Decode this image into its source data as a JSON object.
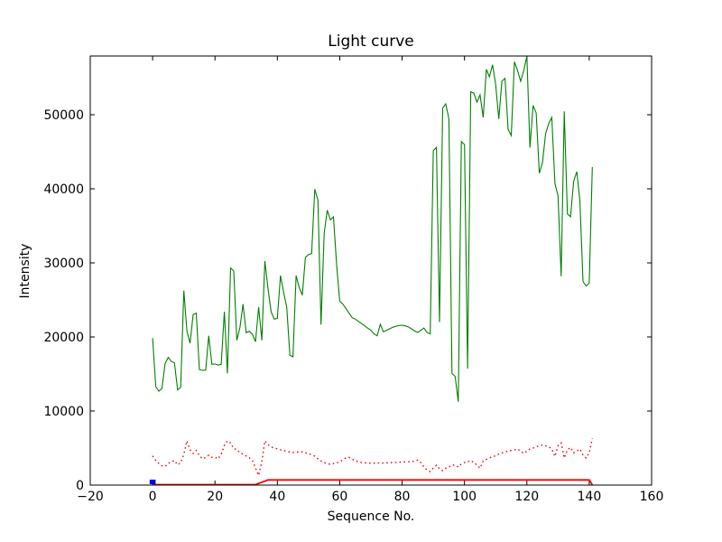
{
  "figure": {
    "title": "Light curve",
    "xlabel": "Sequence No.",
    "ylabel": "Intensity",
    "background": "#ffffff",
    "accent_colors": {
      "main_line": "#008000",
      "secondary_line": "#ff0000",
      "marker": "#0000dd",
      "axis": "#000000"
    }
  },
  "chart_data": {
    "type": "line",
    "title": "Light curve",
    "xlabel": "Sequence No.",
    "ylabel": "Intensity",
    "xlim": [
      -20,
      160
    ],
    "ylim": [
      0,
      57927
    ],
    "grid": false,
    "legend": null,
    "x_ticks": [
      {
        "value": -20,
        "label": "−20"
      },
      {
        "value": 0,
        "label": "0"
      },
      {
        "value": 20,
        "label": "20"
      },
      {
        "value": 40,
        "label": "40"
      },
      {
        "value": 60,
        "label": "60"
      },
      {
        "value": 80,
        "label": "80"
      },
      {
        "value": 100,
        "label": "100"
      },
      {
        "value": 120,
        "label": "120"
      },
      {
        "value": 140,
        "label": "140"
      },
      {
        "value": 160,
        "label": "160"
      }
    ],
    "y_ticks": [
      {
        "value": 0,
        "label": "0"
      },
      {
        "value": 10000,
        "label": "10000"
      },
      {
        "value": 20000,
        "label": "20000"
      },
      {
        "value": 30000,
        "label": "30000"
      },
      {
        "value": 40000,
        "label": "40000"
      },
      {
        "value": 50000,
        "label": "50000"
      }
    ],
    "series": [
      {
        "name": "light-curve-main",
        "color": "#008000",
        "style": "solid",
        "line_width": 1.1,
        "x_start": 0,
        "x_step": 1,
        "y": [
          19840,
          13290,
          12680,
          13050,
          16400,
          17230,
          16700,
          16500,
          12840,
          13200,
          26260,
          20800,
          19150,
          23010,
          23210,
          15600,
          15490,
          15520,
          20160,
          16300,
          16350,
          16200,
          16300,
          23420,
          15080,
          29300,
          28900,
          19550,
          21300,
          24430,
          20570,
          20770,
          20360,
          19350,
          24020,
          19550,
          30240,
          26460,
          23410,
          22400,
          22520,
          28290,
          26060,
          24020,
          17520,
          17320,
          28290,
          26670,
          25650,
          30730,
          31140,
          31260,
          39950,
          38450,
          21670,
          34000,
          37110,
          35810,
          36220,
          29720,
          24840,
          24430,
          23820,
          23210,
          22600,
          22400,
          22100,
          21800,
          21500,
          21180,
          20900,
          20400,
          20160,
          21700,
          20700,
          20900,
          21100,
          21300,
          21450,
          21550,
          21590,
          21500,
          21350,
          21100,
          20800,
          20600,
          20900,
          21200,
          20600,
          20400,
          45160,
          45580,
          22000,
          50900,
          51460,
          49440,
          15080,
          14670,
          11250,
          46380,
          45980,
          15730,
          53100,
          52900,
          51700,
          52700,
          49640,
          56140,
          55120,
          56750,
          54110,
          49430,
          54510,
          54920,
          48010,
          47190,
          57150,
          56000,
          54510,
          55940,
          57900,
          45570,
          51250,
          50240,
          42110,
          43540,
          47400,
          48820,
          49640,
          40690,
          39060,
          28200,
          50450,
          36620,
          36220,
          41000,
          42320,
          38450,
          27500,
          26870,
          27280,
          42930
        ]
      },
      {
        "name": "background-curve-dotted",
        "color": "#ff0000",
        "style": "dotted",
        "line_width": 1.4,
        "x_start": 0,
        "x_step": 1,
        "y": [
          3940,
          3330,
          2930,
          2600,
          2520,
          2930,
          3130,
          3330,
          2740,
          3000,
          4150,
          5980,
          4760,
          4270,
          4680,
          3940,
          3540,
          3740,
          4030,
          3740,
          3740,
          3540,
          4150,
          5370,
          5980,
          5700,
          4900,
          4800,
          4350,
          4170,
          3940,
          3700,
          3300,
          2320,
          1300,
          3170,
          5980,
          5490,
          5160,
          5000,
          4900,
          4760,
          4680,
          4550,
          4470,
          4400,
          4430,
          4500,
          4470,
          4350,
          4270,
          4060,
          3900,
          3540,
          3250,
          3050,
          2900,
          2800,
          2900,
          3000,
          3150,
          3400,
          3700,
          3740,
          3500,
          3300,
          3150,
          3050,
          3000,
          2980,
          2960,
          2960,
          2980,
          3000,
          2980,
          3000,
          3020,
          3050,
          3050,
          3080,
          3100,
          3130,
          3150,
          3180,
          3250,
          3380,
          3050,
          2440,
          2030,
          1830,
          2320,
          2680,
          2200,
          1950,
          2280,
          2440,
          2720,
          2680,
          2440,
          2850,
          3050,
          3130,
          3330,
          3050,
          2720,
          2280,
          3250,
          3460,
          3660,
          3860,
          3940,
          4190,
          4350,
          4470,
          4590,
          4680,
          4760,
          4880,
          4590,
          4270,
          4590,
          4880,
          5000,
          5170,
          5290,
          5410,
          5290,
          5170,
          4880,
          3860,
          5290,
          5700,
          3660,
          4760,
          5080,
          4350,
          4590,
          4880,
          4060,
          3660,
          4350,
          6300
        ]
      },
      {
        "name": "threshold-step-line",
        "color": "#ff0000",
        "style": "solid",
        "line_width": 1.8,
        "x": [
          0,
          33,
          37,
          140,
          141
        ],
        "y": [
          60,
          60,
          700,
          700,
          30
        ]
      },
      {
        "name": "start-marker",
        "color": "#0000dd",
        "style": "square-marker",
        "x": [
          0
        ],
        "y": [
          430
        ]
      }
    ]
  }
}
